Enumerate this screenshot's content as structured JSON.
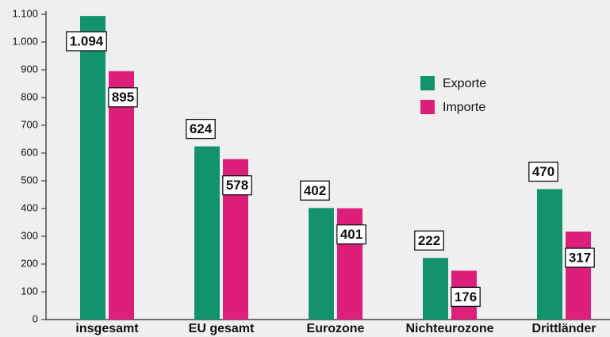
{
  "chart_data": {
    "type": "bar",
    "categories": [
      "insgesamt",
      "EU gesamt",
      "Eurozone",
      "Nichteurozone",
      "Drittländer"
    ],
    "series": [
      {
        "name": "Exporte",
        "color": "#13936d",
        "values": [
          1094,
          624,
          402,
          222,
          470
        ],
        "value_labels": [
          "1.094",
          "624",
          "402",
          "222",
          "470"
        ]
      },
      {
        "name": "Importe",
        "color": "#dc1f78",
        "values": [
          895,
          578,
          401,
          176,
          317
        ],
        "value_labels": [
          "895",
          "578",
          "401",
          "176",
          "317"
        ]
      }
    ],
    "ylim": [
      0,
      1100
    ],
    "yticks": [
      0,
      100,
      200,
      300,
      400,
      500,
      600,
      700,
      800,
      900,
      {
        "value": 1000,
        "label": "1.000"
      },
      {
        "value": 1100,
        "label": "1.100"
      }
    ],
    "grid": false
  }
}
